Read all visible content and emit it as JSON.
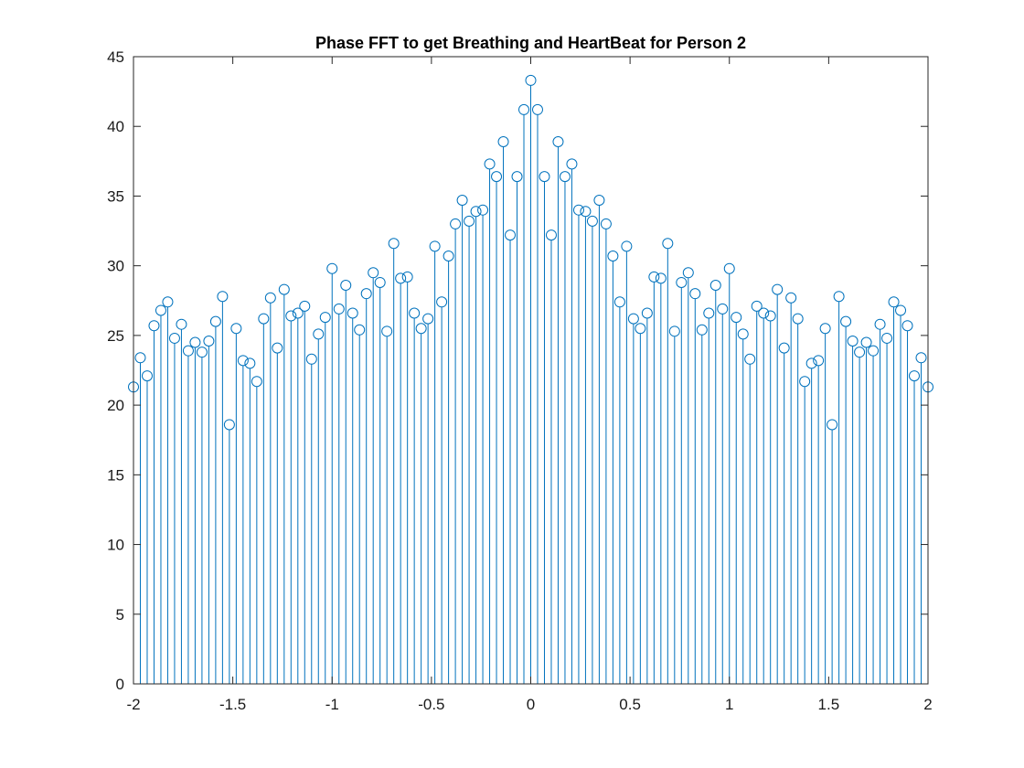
{
  "chart_data": {
    "type": "stem",
    "title": "Phase FFT to get Breathing and HeartBeat for Person 2",
    "xlabel": "",
    "ylabel": "",
    "xlim": [
      -2,
      2
    ],
    "ylim": [
      0,
      45
    ],
    "x_ticks": [
      -2,
      -1.5,
      -1,
      -0.5,
      0,
      0.5,
      1,
      1.5,
      2
    ],
    "x_tick_labels": [
      "-2",
      "-1.5",
      "-1",
      "-0.5",
      "0",
      "0.5",
      "1",
      "1.5",
      "2"
    ],
    "y_ticks": [
      0,
      5,
      10,
      15,
      20,
      25,
      30,
      35,
      40,
      45
    ],
    "y_tick_labels": [
      "0",
      "5",
      "10",
      "15",
      "20",
      "25",
      "30",
      "35",
      "40",
      "45"
    ],
    "grid": false,
    "box": true,
    "color": "#0072BD",
    "x_step": 0.0333,
    "y": [
      21.3,
      23.4,
      22.1,
      25.7,
      26.8,
      27.4,
      24.8,
      25.8,
      23.9,
      24.5,
      23.8,
      24.6,
      26.0,
      27.8,
      18.6,
      25.5,
      23.2,
      23.0,
      21.7,
      26.2,
      27.7,
      24.1,
      28.3,
      26.4,
      26.6,
      27.1,
      23.3,
      25.1,
      26.3,
      29.8,
      26.9,
      28.6,
      26.6,
      25.4,
      28.0,
      29.5,
      28.8,
      25.3,
      31.6,
      29.1,
      29.2,
      26.6,
      25.5,
      26.2,
      31.4,
      27.4,
      30.7,
      33.0,
      34.7,
      33.2,
      33.9,
      34.0,
      37.3,
      36.4,
      38.9,
      32.2,
      36.4,
      41.2,
      43.3,
      41.2,
      36.4,
      32.2,
      38.9,
      36.4,
      37.3,
      34.0,
      33.9,
      33.2,
      34.7,
      33.0,
      30.7,
      27.4,
      31.4,
      26.2,
      25.5,
      26.6,
      29.2,
      29.1,
      31.6,
      25.3,
      28.8,
      29.5,
      28.0,
      25.4,
      26.6,
      28.6,
      26.9,
      29.8,
      26.3,
      25.1,
      23.3,
      27.1,
      26.6,
      26.4,
      28.3,
      24.1,
      27.7,
      26.2,
      21.7,
      23.0,
      23.2,
      25.5,
      18.6,
      27.8,
      26.0,
      24.6,
      23.8,
      24.5,
      23.9,
      25.8,
      24.8,
      27.4,
      26.8,
      25.7,
      22.1,
      23.4,
      21.3
    ]
  }
}
